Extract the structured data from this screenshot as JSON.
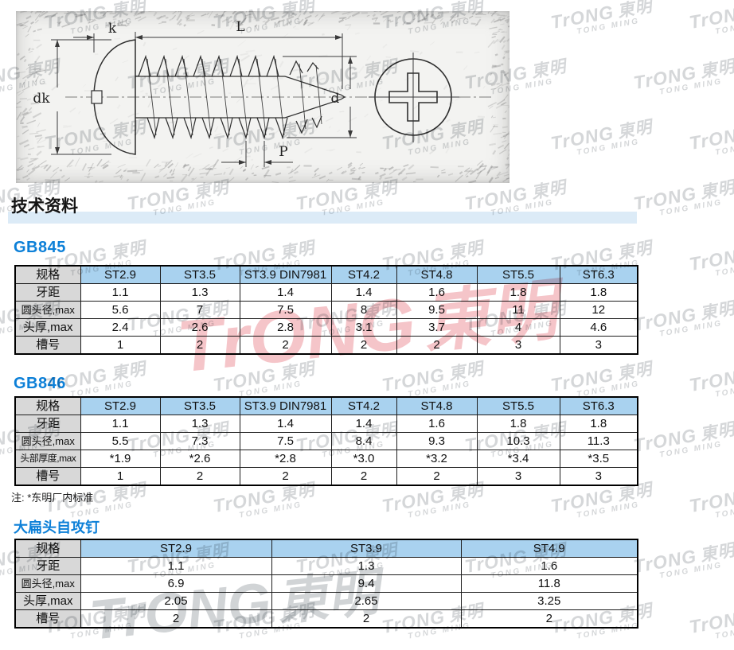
{
  "page": {
    "title": "技术资料",
    "note": "注: *东明厂内标准"
  },
  "watermark": {
    "logo": "TrONG",
    "logo_cjk": "東明",
    "subtext": "TONG MING"
  },
  "drawing": {
    "dims": {
      "head_height": "k",
      "length": "L",
      "head_dia": "dk",
      "dia": "d",
      "pitch": "P"
    }
  },
  "sections": {
    "gb845": {
      "heading": "GB845",
      "table": {
        "corner": "规格",
        "columns": [
          "ST2.9",
          "ST3.5",
          "ST3.9 DIN7981",
          "ST4.2",
          "ST4.8",
          "ST5.5",
          "ST6.3"
        ],
        "rows": [
          {
            "label": "牙距",
            "values": [
              "1.1",
              "1.3",
              "1.4",
              "1.4",
              "1.6",
              "1.8",
              "1.8"
            ]
          },
          {
            "label": "圆头径,max",
            "values": [
              "5.6",
              "7",
              "7.5",
              "8",
              "9.5",
              "11",
              "12"
            ]
          },
          {
            "label": "头厚,max",
            "values": [
              "2.4",
              "2.6",
              "2.8",
              "3.1",
              "3.7",
              "4",
              "4.6"
            ]
          },
          {
            "label": "槽号",
            "values": [
              "1",
              "2",
              "2",
              "2",
              "2",
              "3",
              "3"
            ]
          }
        ]
      }
    },
    "gb846": {
      "heading": "GB846",
      "table": {
        "corner": "规格",
        "columns": [
          "ST2.9",
          "ST3.5",
          "ST3.9 DIN7981",
          "ST4.2",
          "ST4.8",
          "ST5.5",
          "ST6.3"
        ],
        "rows": [
          {
            "label": "牙距",
            "values": [
              "1.1",
              "1.3",
              "1.4",
              "1.4",
              "1.6",
              "1.8",
              "1.8"
            ]
          },
          {
            "label": "圆头径,max",
            "values": [
              "5.5",
              "7.3",
              "7.5",
              "8.4",
              "9.3",
              "10.3",
              "11.3"
            ]
          },
          {
            "label": "头部厚度,max",
            "values": [
              "*1.9",
              "*2.6",
              "*2.8",
              "*3.0",
              "*3.2",
              "*3.4",
              "*3.5"
            ]
          },
          {
            "label": "槽号",
            "values": [
              "1",
              "2",
              "2",
              "2",
              "2",
              "3",
              "3"
            ]
          }
        ]
      }
    },
    "flat_head": {
      "heading": "大扁头自攻钉",
      "table": {
        "corner": "规格",
        "columns": [
          "ST2.9",
          "ST3.9",
          "ST4.9"
        ],
        "rows": [
          {
            "label": "牙距",
            "values": [
              "1.1",
              "1.3",
              "1.6"
            ]
          },
          {
            "label": "圆头径,max",
            "values": [
              "6.9",
              "9.4",
              "11.8"
            ]
          },
          {
            "label": "头厚,max",
            "values": [
              "2.05",
              "2.65",
              "3.25"
            ]
          },
          {
            "label": "槽号",
            "values": [
              "2",
              "2",
              "2"
            ]
          }
        ]
      }
    }
  },
  "colors": {
    "table_header_blue": "#a9d2ef",
    "label_gray": "#d8d8d8",
    "section_heading_blue": "#0d80d8",
    "title_band_blue": "#dcebf7",
    "watermark_gray": "#bcbfc2",
    "watermark_pink": "#efa2a8"
  }
}
